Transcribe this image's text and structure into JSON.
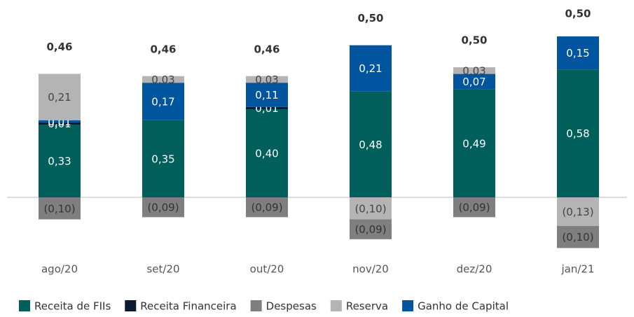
{
  "chart_data": {
    "type": "stacked_bar",
    "categories": [
      "ago/20",
      "set/20",
      "out/20",
      "nov/20",
      "dez/20",
      "jan/21"
    ],
    "series": [
      {
        "name": "Receita de FIIs",
        "color": "#005f5b",
        "values": [
          0.33,
          0.35,
          0.4,
          0.48,
          0.49,
          0.58
        ],
        "value_labels": [
          "0,33",
          "0,35",
          "0,40",
          "0,48",
          "0,49",
          "0,58"
        ]
      },
      {
        "name": "Receita Financeira",
        "color": "#0b1a33",
        "values": [
          0.01,
          null,
          0.01,
          null,
          null,
          null
        ],
        "value_labels": [
          "0,01",
          null,
          "0,01",
          null,
          null,
          null
        ]
      },
      {
        "name": "Despesas",
        "color": "#7f7f7f",
        "values": [
          -0.1,
          -0.09,
          -0.09,
          -0.09,
          -0.09,
          -0.1
        ],
        "value_labels": [
          "(0,10)",
          "(0,09)",
          "(0,09)",
          "(0,09)",
          "(0,09)",
          "(0,10)"
        ]
      },
      {
        "name": "Reserva",
        "color": "#b4b4b4",
        "values": [
          0.21,
          0.03,
          0.03,
          -0.1,
          0.03,
          -0.13
        ],
        "value_labels": [
          "0,21",
          "0,03",
          "0,03",
          "(0,10)",
          "0,03",
          "(0,13)"
        ]
      },
      {
        "name": "Ganho de Capital",
        "color": "#00559e",
        "values": [
          0.01,
          0.17,
          0.11,
          0.21,
          0.07,
          0.15
        ],
        "value_labels": [
          "0,01",
          "0,17",
          "0,11",
          "0,21",
          "0,07",
          "0,15"
        ]
      }
    ],
    "totals": [
      0.46,
      0.46,
      0.46,
      0.5,
      0.5,
      0.5
    ],
    "total_labels": [
      "0,46",
      "0,46",
      "0,46",
      "0,50",
      "0,50",
      "0,50"
    ],
    "legend": "bottom"
  }
}
